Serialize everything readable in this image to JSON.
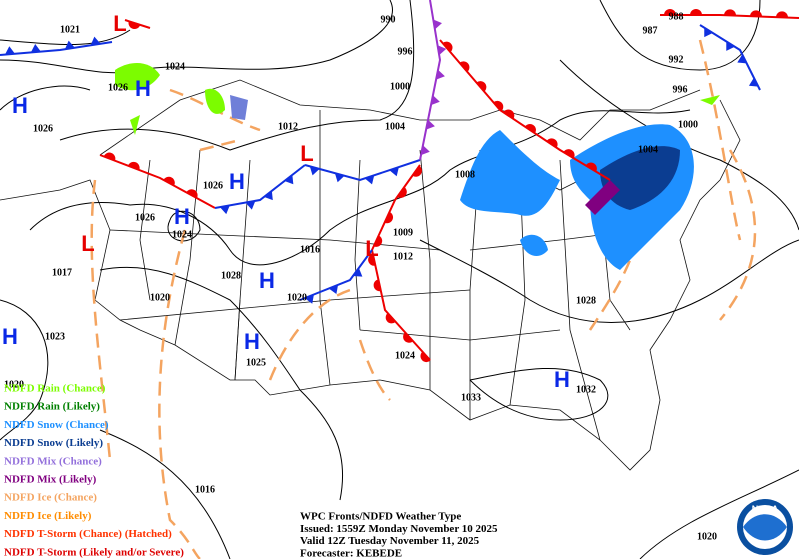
{
  "isobar_labels": [
    "1021",
    "1024",
    "1026",
    "1026",
    "1012",
    "1004",
    "1000",
    "996",
    "990",
    "988",
    "987",
    "992",
    "996",
    "1000",
    "1004",
    "1008",
    "1026",
    "1026",
    "1024",
    "1016",
    "1009",
    "1012",
    "1017",
    "1028",
    "1020",
    "1020",
    "1028",
    "1023",
    "1024",
    "1025",
    "1020",
    "1032",
    "1033",
    "1016",
    "1020"
  ],
  "highs": [
    "H",
    "H",
    "H",
    "H",
    "H",
    "H",
    "H",
    "H"
  ],
  "lows": [
    "L",
    "L",
    "L",
    "L"
  ],
  "legend": [
    {
      "label": "NDFD Rain (Chance)",
      "color": "#7cfc00"
    },
    {
      "label": "NDFD Rain (Likely)",
      "color": "#008000"
    },
    {
      "label": "NDFD Snow (Chance)",
      "color": "#1e90ff"
    },
    {
      "label": "NDFD Snow (Likely)",
      "color": "#0b3d91"
    },
    {
      "label": "NDFD Mix (Chance)",
      "color": "#9370db"
    },
    {
      "label": "NDFD Mix (Likely)",
      "color": "#800080"
    },
    {
      "label": "NDFD Ice (Chance)",
      "color": "#f4a460"
    },
    {
      "label": "NDFD Ice (Likely)",
      "color": "#ff8c00"
    },
    {
      "label": "NDFD T-Storm (Chance) (Hatched)",
      "color": "#ff3300"
    },
    {
      "label": "NDFD T-Storm (Likely and/or Severe)",
      "color": "#dd0000"
    }
  ],
  "title_block": [
    "WPC Fronts/NDFD Weather Type",
    "Issued: 1559Z Monday November 10 2025",
    "Valid 12Z Tuesday November 11, 2025",
    "Forecaster: KEBEDE"
  ],
  "logo_text": "NOAA"
}
